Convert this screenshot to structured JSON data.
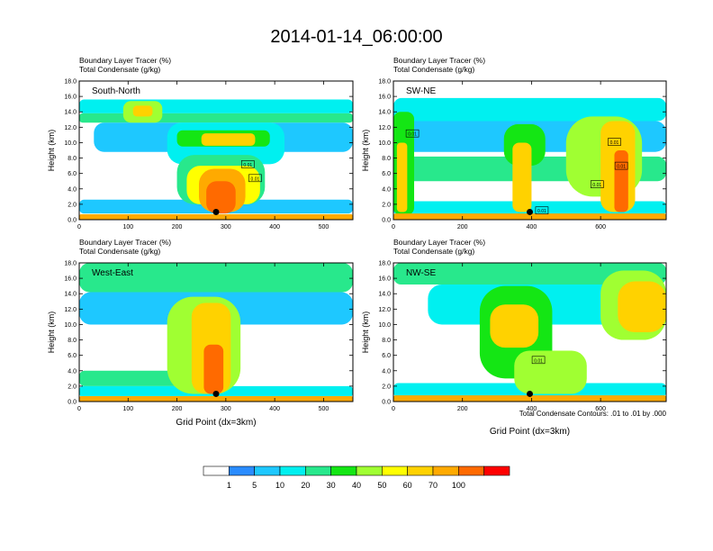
{
  "figure": {
    "title": "2014-01-14_06:00:00",
    "contour_note": "Total Condensate Contours: .01 to .01 by .000",
    "marker_level": "1"
  },
  "colorbar": {
    "colors": [
      "#ffffff",
      "#2a8cff",
      "#1ec8ff",
      "#00f0f0",
      "#28e88c",
      "#14e614",
      "#a0ff32",
      "#ffff00",
      "#ffd200",
      "#ffaa00",
      "#ff6a00",
      "#ff0000"
    ],
    "labels": [
      "1",
      "5",
      "10",
      "20",
      "30",
      "40",
      "50",
      "60",
      "70",
      "100"
    ]
  },
  "chart_data": [
    {
      "type": "heatmap",
      "panel_label": "South-North",
      "title_lines": [
        "Boundary Layer Tracer   (%)",
        "Total Condensate   (g/kg)"
      ],
      "xlabel": "",
      "ylabel": "Height (km)",
      "xlim": [
        0,
        560
      ],
      "ylim": [
        0,
        18
      ],
      "xticks": [
        "0",
        "100",
        "200",
        "300",
        "400",
        "500"
      ],
      "yticks": [
        "0.0",
        "2.0",
        "4.0",
        "6.0",
        "8.0",
        "10.0",
        "12.0",
        "14.0",
        "16.0",
        "18.0"
      ],
      "marker": {
        "x": 280,
        "y": 1.0
      },
      "contour_labels": [
        {
          "x": 345,
          "y": 7.2,
          "text": "0.01"
        },
        {
          "x": 360,
          "y": 5.4,
          "text": "0.01"
        }
      ],
      "layers": [
        {
          "level": 5,
          "x": [
            0,
            560
          ],
          "y": [
            0.8,
            2.6
          ]
        },
        {
          "level": 10,
          "x": [
            0,
            560
          ],
          "y": [
            13.8,
            15.6
          ]
        },
        {
          "level": 20,
          "x": [
            0,
            560
          ],
          "y": [
            12.6,
            13.8
          ]
        },
        {
          "level": 5,
          "x": [
            30,
            560
          ],
          "y": [
            8.8,
            12.6
          ]
        },
        {
          "level": 10,
          "x": [
            180,
            420
          ],
          "y": [
            7.2,
            12.6
          ]
        },
        {
          "level": 40,
          "x": [
            90,
            170
          ],
          "y": [
            12.6,
            15.4
          ]
        },
        {
          "level": 60,
          "x": [
            110,
            150
          ],
          "y": [
            13.4,
            14.8
          ]
        },
        {
          "level": 30,
          "x": [
            200,
            390
          ],
          "y": [
            9.5,
            11.6
          ]
        },
        {
          "level": 60,
          "x": [
            250,
            360
          ],
          "y": [
            9.6,
            11.2
          ]
        },
        {
          "level": 20,
          "x": [
            200,
            380
          ],
          "y": [
            2.0,
            8.4
          ]
        },
        {
          "level": 50,
          "x": [
            220,
            370
          ],
          "y": [
            2.0,
            7.0
          ]
        },
        {
          "level": 70,
          "x": [
            245,
            340
          ],
          "y": [
            1.0,
            6.6
          ]
        },
        {
          "level": 100,
          "x": [
            260,
            320
          ],
          "y": [
            0.8,
            5.0
          ]
        },
        {
          "level": 70,
          "x": [
            0,
            560
          ],
          "y": [
            0.0,
            0.7
          ]
        }
      ]
    },
    {
      "type": "heatmap",
      "panel_label": "SW-NE",
      "title_lines": [
        "Boundary Layer Tracer   (%)",
        "Total Condensate   (g/kg)"
      ],
      "xlabel": "",
      "ylabel": "Height (km)",
      "xlim": [
        0,
        790
      ],
      "ylim": [
        0,
        18
      ],
      "xticks": [
        "0",
        "200",
        "400",
        "600"
      ],
      "yticks": [
        "0.0",
        "2.0",
        "4.0",
        "6.0",
        "8.0",
        "10.0",
        "12.0",
        "14.0",
        "16.0",
        "18.0"
      ],
      "marker": {
        "x": 395,
        "y": 1.0
      },
      "contour_labels": [
        {
          "x": 55,
          "y": 11.2,
          "text": "0.01"
        },
        {
          "x": 640,
          "y": 10.1,
          "text": "0.01"
        },
        {
          "x": 660,
          "y": 7.0,
          "text": "0.01"
        },
        {
          "x": 590,
          "y": 4.6,
          "text": "0.01"
        },
        {
          "x": 430,
          "y": 1.2,
          "text": "0.01"
        }
      ],
      "layers": [
        {
          "level": 10,
          "x": [
            0,
            790
          ],
          "y": [
            12.8,
            15.8
          ]
        },
        {
          "level": 5,
          "x": [
            0,
            790
          ],
          "y": [
            8.8,
            12.8
          ]
        },
        {
          "level": 20,
          "x": [
            0,
            790
          ],
          "y": [
            5.0,
            8.2
          ]
        },
        {
          "level": 10,
          "x": [
            0,
            790
          ],
          "y": [
            0.6,
            2.4
          ]
        },
        {
          "level": 30,
          "x": [
            0,
            60
          ],
          "y": [
            0.6,
            14.0
          ]
        },
        {
          "level": 60,
          "x": [
            10,
            40
          ],
          "y": [
            1.0,
            10.0
          ]
        },
        {
          "level": 30,
          "x": [
            320,
            440
          ],
          "y": [
            7.0,
            12.4
          ]
        },
        {
          "level": 60,
          "x": [
            345,
            400
          ],
          "y": [
            1.0,
            10.0
          ]
        },
        {
          "level": 40,
          "x": [
            500,
            720
          ],
          "y": [
            3.0,
            13.4
          ]
        },
        {
          "level": 60,
          "x": [
            600,
            700
          ],
          "y": [
            1.0,
            12.8
          ]
        },
        {
          "level": 100,
          "x": [
            640,
            680
          ],
          "y": [
            1.0,
            9.0
          ]
        },
        {
          "level": 70,
          "x": [
            0,
            790
          ],
          "y": [
            0.0,
            0.8
          ]
        }
      ]
    },
    {
      "type": "heatmap",
      "panel_label": "West-East",
      "title_lines": [
        "Boundary Layer Tracer   (%)",
        "Total Condensate   (g/kg)"
      ],
      "xlabel": "Grid Point (dx=3km)",
      "ylabel": "Height (km)",
      "xlim": [
        0,
        560
      ],
      "ylim": [
        0,
        18
      ],
      "xticks": [
        "0",
        "100",
        "200",
        "300",
        "400",
        "500"
      ],
      "yticks": [
        "0.0",
        "2.0",
        "4.0",
        "6.0",
        "8.0",
        "10.0",
        "12.0",
        "14.0",
        "16.0",
        "18.0"
      ],
      "marker": {
        "x": 280,
        "y": 1.0
      },
      "contour_labels": [],
      "layers": [
        {
          "level": 20,
          "x": [
            0,
            560
          ],
          "y": [
            14.2,
            18.0
          ]
        },
        {
          "level": 5,
          "x": [
            0,
            560
          ],
          "y": [
            10.0,
            14.2
          ]
        },
        {
          "level": 20,
          "x": [
            0,
            220
          ],
          "y": [
            2.0,
            4.0
          ]
        },
        {
          "level": 10,
          "x": [
            0,
            560
          ],
          "y": [
            0.6,
            2.0
          ]
        },
        {
          "level": 40,
          "x": [
            180,
            330
          ],
          "y": [
            1.0,
            13.6
          ]
        },
        {
          "level": 60,
          "x": [
            230,
            310
          ],
          "y": [
            1.0,
            12.8
          ]
        },
        {
          "level": 100,
          "x": [
            255,
            295
          ],
          "y": [
            1.0,
            7.4
          ]
        },
        {
          "level": 70,
          "x": [
            0,
            560
          ],
          "y": [
            0.0,
            0.7
          ]
        }
      ]
    },
    {
      "type": "heatmap",
      "panel_label": "NW-SE",
      "title_lines": [
        "Boundary Layer Tracer   (%)",
        "Total Condensate   (g/kg)"
      ],
      "xlabel": "Grid Point (dx=3km)",
      "ylabel": "Height (km)",
      "xlim": [
        0,
        790
      ],
      "ylim": [
        0,
        18
      ],
      "xticks": [
        "0",
        "200",
        "400",
        "600"
      ],
      "yticks": [
        "0.0",
        "2.0",
        "4.0",
        "6.0",
        "8.0",
        "10.0",
        "12.0",
        "14.0",
        "16.0",
        "18.0"
      ],
      "marker": {
        "x": 395,
        "y": 1.0
      },
      "contour_labels": [
        {
          "x": 420,
          "y": 5.4,
          "text": "0.01"
        }
      ],
      "layers": [
        {
          "level": 20,
          "x": [
            0,
            790
          ],
          "y": [
            15.2,
            18.0
          ]
        },
        {
          "level": 10,
          "x": [
            100,
            790
          ],
          "y": [
            10.0,
            15.2
          ]
        },
        {
          "level": 40,
          "x": [
            600,
            790
          ],
          "y": [
            8.0,
            17.0
          ]
        },
        {
          "level": 60,
          "x": [
            650,
            790
          ],
          "y": [
            9.0,
            15.6
          ]
        },
        {
          "level": 30,
          "x": [
            250,
            460
          ],
          "y": [
            3.0,
            15.0
          ]
        },
        {
          "level": 60,
          "x": [
            280,
            420
          ],
          "y": [
            7.0,
            12.6
          ]
        },
        {
          "level": 10,
          "x": [
            0,
            790
          ],
          "y": [
            0.6,
            2.4
          ]
        },
        {
          "level": 40,
          "x": [
            350,
            560
          ],
          "y": [
            1.0,
            6.6
          ]
        },
        {
          "level": 70,
          "x": [
            0,
            790
          ],
          "y": [
            0.0,
            0.8
          ]
        }
      ]
    }
  ]
}
